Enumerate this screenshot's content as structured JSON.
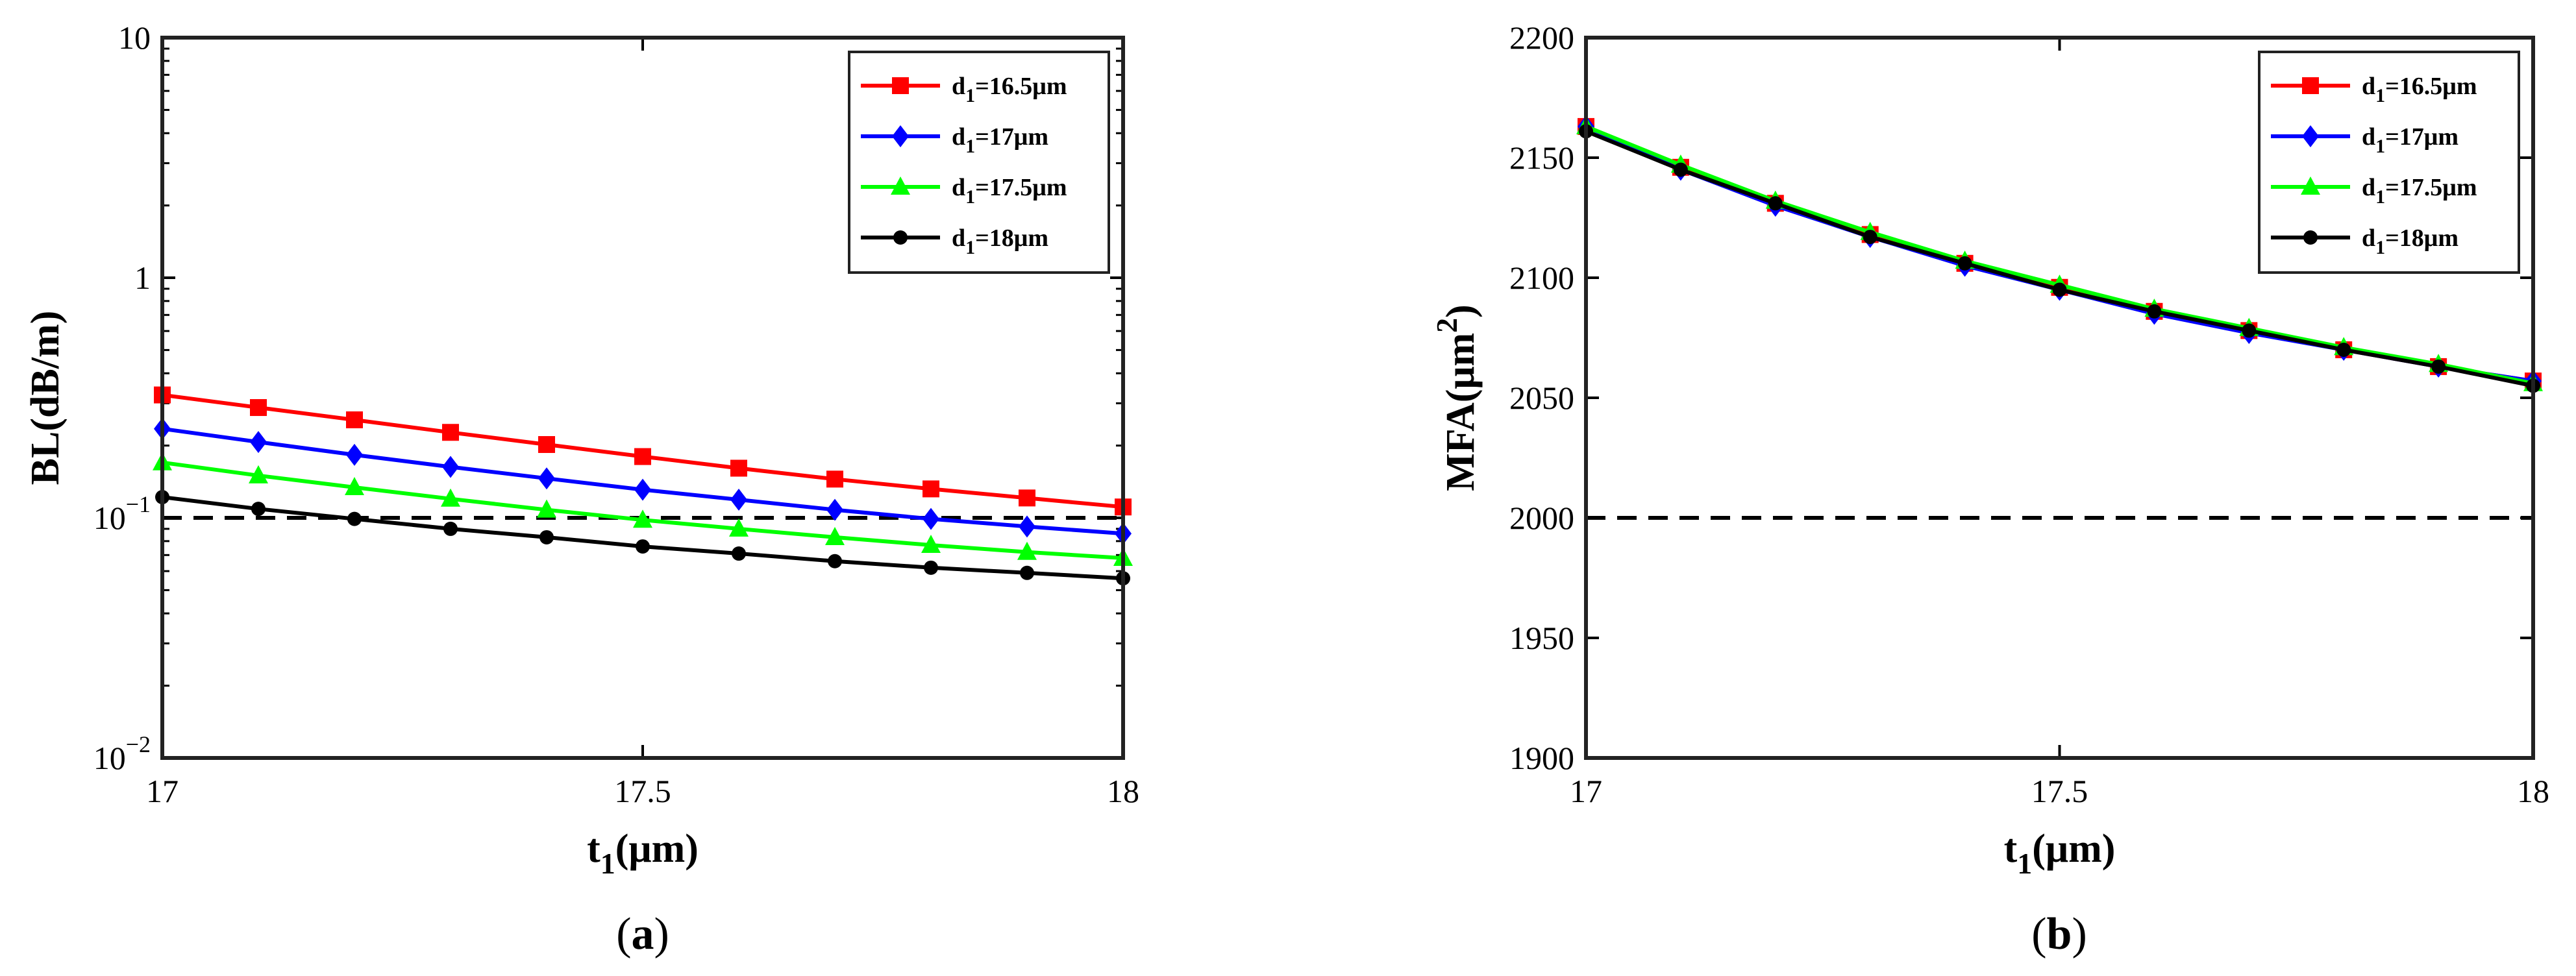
{
  "chart_data": [
    {
      "type": "line",
      "panel": "a",
      "caption_letter": "a",
      "caption_open": "(",
      "caption_close": ")",
      "yscale": "log",
      "xlabel_main": "t",
      "xlabel_sub": "1",
      "xlabel_unit": "(μm)",
      "ylabel": "BL(dB/m)",
      "xlim": [
        17,
        18
      ],
      "ylim": [
        0.01,
        10
      ],
      "x_ticks": [
        {
          "value": 17,
          "label": "17"
        },
        {
          "value": 17.5,
          "label": "17.5"
        },
        {
          "value": 18,
          "label": "18"
        }
      ],
      "y_ticks": [
        {
          "value": 0.01,
          "base": "10",
          "exp": "−2"
        },
        {
          "value": 0.1,
          "base": "10",
          "exp": "−1"
        },
        {
          "value": 1,
          "base": "1",
          "exp": ""
        },
        {
          "value": 10,
          "base": "10",
          "exp": ""
        }
      ],
      "legend_position": "top-right",
      "x": [
        17,
        17.1,
        17.2,
        17.3,
        17.4,
        17.5,
        17.6,
        17.7,
        17.8,
        17.9,
        18
      ],
      "reference_line": {
        "value": 0.1,
        "style": "dashed",
        "color": "#000000"
      },
      "series": [
        {
          "name": "d1=16.5μm",
          "legend_main": "d",
          "legend_sub": "1",
          "legend_rest": "=16.5μm",
          "color": "#ff0000",
          "marker": "square",
          "values": [
            0.325,
            0.288,
            0.256,
            0.227,
            0.202,
            0.18,
            0.161,
            0.145,
            0.132,
            0.121,
            0.111
          ]
        },
        {
          "name": "d1=17μm",
          "legend_main": "d",
          "legend_sub": "1",
          "legend_rest": "=17μm",
          "color": "#0000ff",
          "marker": "diamond",
          "values": [
            0.235,
            0.207,
            0.183,
            0.163,
            0.146,
            0.131,
            0.119,
            0.108,
            0.099,
            0.092,
            0.086
          ]
        },
        {
          "name": "d1=17.5μm",
          "legend_main": "d",
          "legend_sub": "1",
          "legend_rest": "=17.5μm",
          "color": "#00ff00",
          "marker": "triangle",
          "values": [
            0.17,
            0.15,
            0.134,
            0.12,
            0.108,
            0.098,
            0.09,
            0.083,
            0.077,
            0.072,
            0.068
          ]
        },
        {
          "name": "d1=18μm",
          "legend_main": "d",
          "legend_sub": "1",
          "legend_rest": "=18μm",
          "color": "#000000",
          "marker": "circle",
          "values": [
            0.122,
            0.109,
            0.099,
            0.09,
            0.083,
            0.076,
            0.071,
            0.066,
            0.062,
            0.059,
            0.056
          ]
        }
      ]
    },
    {
      "type": "line",
      "panel": "b",
      "caption_letter": "b",
      "caption_open": "(",
      "caption_close": ")",
      "yscale": "linear",
      "xlabel_main": "t",
      "xlabel_sub": "1",
      "xlabel_unit": "(μm)",
      "ylabel_main": "MFA(μm",
      "ylabel_sup": "2",
      "ylabel_close": ")",
      "xlim": [
        17,
        18
      ],
      "ylim": [
        1900,
        2200
      ],
      "x_ticks": [
        {
          "value": 17,
          "label": "17"
        },
        {
          "value": 17.5,
          "label": "17.5"
        },
        {
          "value": 18,
          "label": "18"
        }
      ],
      "y_ticks": [
        {
          "value": 1900,
          "label": "1900"
        },
        {
          "value": 1950,
          "label": "1950"
        },
        {
          "value": 2000,
          "label": "2000"
        },
        {
          "value": 2050,
          "label": "2050"
        },
        {
          "value": 2100,
          "label": "2100"
        },
        {
          "value": 2150,
          "label": "2150"
        },
        {
          "value": 2200,
          "label": "2200"
        }
      ],
      "legend_position": "top-right",
      "x": [
        17,
        17.1,
        17.2,
        17.3,
        17.4,
        17.5,
        17.6,
        17.7,
        17.8,
        17.9,
        18
      ],
      "reference_line": {
        "value": 2000,
        "style": "dashed",
        "color": "#000000"
      },
      "series": [
        {
          "name": "d1=16.5μm",
          "legend_main": "d",
          "legend_sub": "1",
          "legend_rest": "=16.5μm",
          "color": "#ff0000",
          "marker": "square",
          "values": [
            2163,
            2146,
            2131,
            2118,
            2106,
            2096,
            2086,
            2078,
            2070,
            2063,
            2057
          ]
        },
        {
          "name": "d1=17μm",
          "legend_main": "d",
          "legend_sub": "1",
          "legend_rest": "=17μm",
          "color": "#0000ff",
          "marker": "diamond",
          "values": [
            2163,
            2145,
            2130,
            2117,
            2105,
            2095,
            2085,
            2077,
            2070,
            2063,
            2057
          ]
        },
        {
          "name": "d1=17.5μm",
          "legend_main": "d",
          "legend_sub": "1",
          "legend_rest": "=17.5μm",
          "color": "#00ff00",
          "marker": "triangle",
          "values": [
            2163,
            2147,
            2132,
            2119,
            2107,
            2097,
            2087,
            2079,
            2071,
            2064,
            2056
          ]
        },
        {
          "name": "d1=18μm",
          "legend_main": "d",
          "legend_sub": "1",
          "legend_rest": "=18μm",
          "color": "#000000",
          "marker": "circle",
          "values": [
            2161,
            2145,
            2131,
            2117,
            2106,
            2095,
            2086,
            2078,
            2070,
            2063,
            2055
          ]
        }
      ]
    }
  ]
}
